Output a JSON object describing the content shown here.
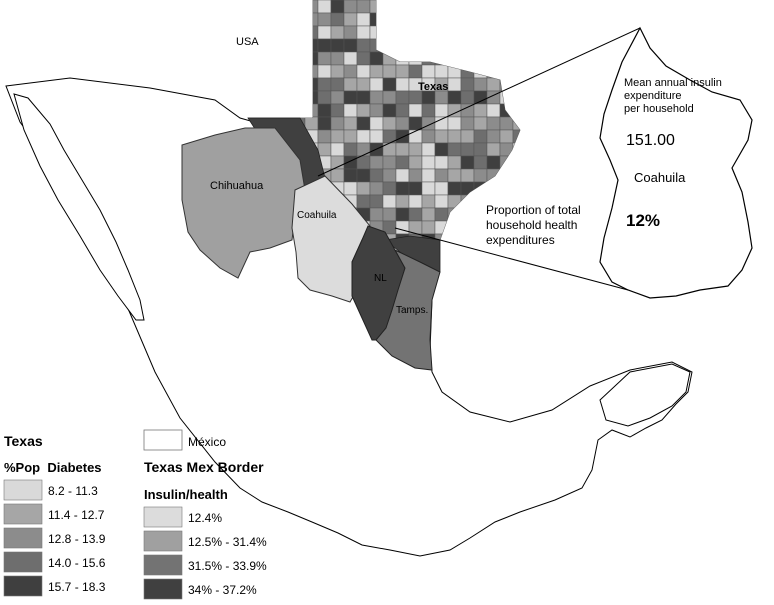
{
  "map_labels": {
    "usa": "USA",
    "texas": "Texas",
    "chihuahua": "Chihuahua",
    "coahuila": "Coahuila",
    "nl": "NL",
    "tamps": "Tamps."
  },
  "callout": {
    "heading_line1": "Mean annual insulin",
    "heading_line2": "expenditure",
    "heading_line3": "per household",
    "value": "151.00",
    "state": "Coahuila",
    "percent": "12%",
    "proportion_line1": "Proportion of total",
    "proportion_line2": "household health",
    "proportion_line3": "expenditures"
  },
  "legend_texas": {
    "title": "Texas",
    "subtitle": "%Pop  Diabetes",
    "classes": [
      {
        "label": "8.2 - 11.3",
        "color": "#d9d9d9"
      },
      {
        "label": "11.4 - 12.7",
        "color": "#a6a6a6"
      },
      {
        "label": "12.8 - 13.9",
        "color": "#8c8c8c"
      },
      {
        "label": "14.0 - 15.6",
        "color": "#6e6e6e"
      },
      {
        "label": "15.7 - 18.3",
        "color": "#3f3f3f"
      }
    ]
  },
  "legend_mexico": {
    "label": "México",
    "color": "#ffffff"
  },
  "legend_border": {
    "title": "Texas Mex Border",
    "subtitle": "Insulin/health",
    "classes": [
      {
        "label": "12.4%",
        "color": "#dcdcdc"
      },
      {
        "label": "12.5% - 31.4%",
        "color": "#a0a0a0"
      },
      {
        "label": "31.5% - 33.9%",
        "color": "#737373"
      },
      {
        "label": "34% - 37.2%",
        "color": "#404040"
      }
    ]
  }
}
